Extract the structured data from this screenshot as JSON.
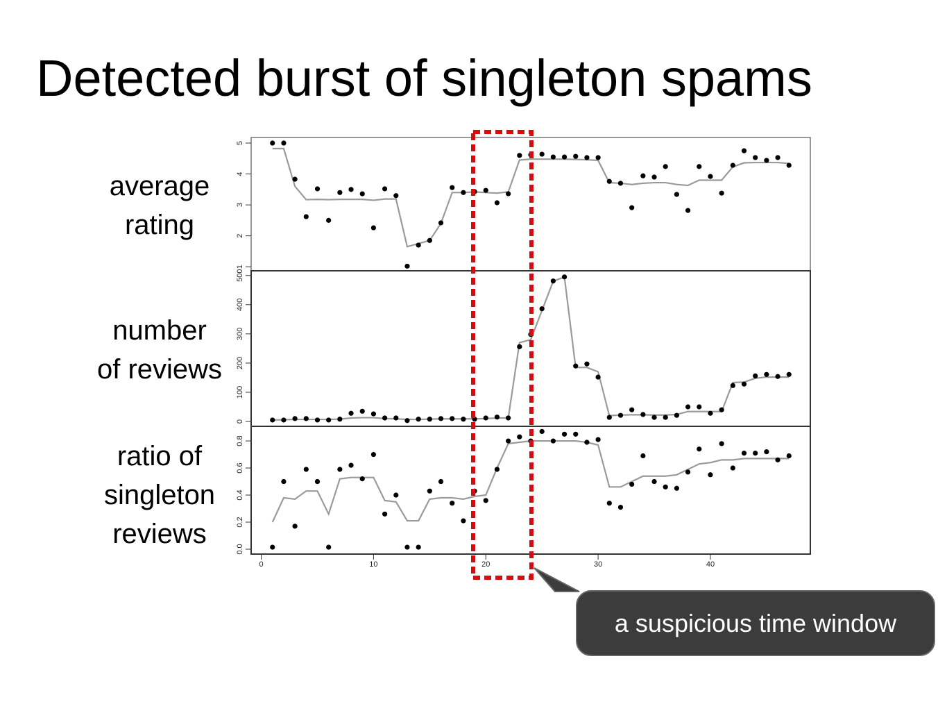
{
  "title": "Detected burst of singleton spams",
  "callout": "a suspicious time window",
  "chart_data": [
    {
      "type": "line",
      "ylabel": [
        "average",
        "rating"
      ],
      "x": [
        1,
        2,
        3,
        4,
        5,
        6,
        7,
        8,
        9,
        10,
        11,
        12,
        13,
        14,
        15,
        16,
        17,
        18,
        19,
        20,
        21,
        22,
        23,
        24,
        25,
        26,
        27,
        28,
        29,
        30,
        31,
        32,
        33,
        34,
        35,
        36,
        37,
        38,
        39,
        40,
        41,
        42,
        43,
        44,
        45,
        46,
        47
      ],
      "xlim": [
        -0.9,
        48.9
      ],
      "ylim": [
        0.87,
        5.18
      ],
      "yticks": [
        1,
        2,
        3,
        4,
        5
      ],
      "series": [
        {
          "mark": "line",
          "color": "#9a9a9a",
          "values": [
            4.82,
            4.82,
            3.6,
            3.17,
            3.18,
            3.17,
            3.18,
            3.18,
            3.18,
            3.15,
            3.19,
            3.19,
            1.65,
            1.75,
            1.85,
            2.4,
            3.4,
            3.4,
            3.42,
            3.4,
            3.38,
            3.42,
            4.45,
            4.48,
            4.48,
            4.48,
            4.48,
            4.47,
            4.46,
            4.44,
            3.72,
            3.7,
            3.66,
            3.7,
            3.72,
            3.72,
            3.66,
            3.63,
            3.8,
            3.8,
            3.8,
            4.23,
            4.36,
            4.37,
            4.37,
            4.37,
            4.34
          ]
        },
        {
          "mark": "point",
          "color": "#000000",
          "values": [
            5.0,
            5.0,
            3.83,
            2.62,
            3.52,
            2.5,
            3.4,
            3.5,
            3.36,
            2.26,
            3.52,
            3.3,
            1.02,
            1.7,
            1.85,
            2.42,
            3.56,
            3.4,
            3.43,
            3.47,
            3.07,
            3.36,
            4.6,
            4.62,
            4.64,
            4.55,
            4.55,
            4.57,
            4.53,
            4.53,
            3.76,
            3.7,
            2.91,
            3.94,
            3.9,
            4.24,
            3.34,
            2.82,
            4.24,
            3.92,
            3.38,
            4.28,
            4.75,
            4.53,
            4.44,
            4.53,
            4.28
          ]
        }
      ]
    },
    {
      "type": "line",
      "ylabel": [
        "number",
        "of reviews"
      ],
      "x": [
        1,
        2,
        3,
        4,
        5,
        6,
        7,
        8,
        9,
        10,
        11,
        12,
        13,
        14,
        15,
        16,
        17,
        18,
        19,
        20,
        21,
        22,
        23,
        24,
        25,
        26,
        27,
        28,
        29,
        30,
        31,
        32,
        33,
        34,
        35,
        36,
        37,
        38,
        39,
        40,
        41,
        42,
        43,
        44,
        45,
        46,
        47
      ],
      "xlim": [
        -0.9,
        48.9
      ],
      "ylim": [
        -16.6,
        516
      ],
      "yticks": [
        0,
        100,
        200,
        300,
        400,
        500
      ],
      "series": [
        {
          "mark": "line",
          "color": "#9a9a9a",
          "values": [
            5,
            6,
            7,
            7,
            7,
            7,
            8,
            12,
            13,
            13,
            10,
            9,
            7,
            7,
            8,
            9,
            9,
            9,
            9,
            10,
            12,
            12,
            270,
            280,
            380,
            480,
            495,
            185,
            185,
            170,
            20,
            22,
            23,
            23,
            22,
            22,
            24,
            34,
            34,
            34,
            34,
            133,
            135,
            148,
            152,
            152,
            152
          ]
        },
        {
          "mark": "point",
          "color": "#000000",
          "values": [
            5,
            5,
            10,
            10,
            5,
            5,
            8,
            28,
            35,
            26,
            12,
            12,
            3,
            8,
            8,
            10,
            10,
            8,
            8,
            12,
            15,
            12,
            256,
            298,
            386,
            481,
            495,
            190,
            197,
            152,
            14,
            21,
            40,
            24,
            14,
            14,
            21,
            50,
            50,
            28,
            40,
            123,
            128,
            156,
            161,
            154,
            161
          ]
        }
      ]
    },
    {
      "type": "line",
      "ylabel": [
        "ratio of",
        "singleton",
        "reviews"
      ],
      "x": [
        1,
        2,
        3,
        4,
        5,
        6,
        7,
        8,
        9,
        10,
        11,
        12,
        13,
        14,
        15,
        16,
        17,
        18,
        19,
        20,
        21,
        22,
        23,
        24,
        25,
        26,
        27,
        28,
        29,
        30,
        31,
        32,
        33,
        34,
        35,
        36,
        37,
        38,
        39,
        40,
        41,
        42,
        43,
        44,
        45,
        46,
        47
      ],
      "xlim": [
        -0.9,
        48.9
      ],
      "xticks": [
        0,
        10,
        20,
        30,
        40
      ],
      "ylim": [
        -0.036,
        0.908
      ],
      "yticks": [
        {
          "value": 0,
          "label": "0.0"
        },
        0.2,
        0.4,
        0.6,
        0.8
      ],
      "series": [
        {
          "mark": "line",
          "color": "#9a9a9a",
          "values": [
            0.2,
            0.38,
            0.37,
            0.43,
            0.43,
            0.26,
            0.52,
            0.53,
            0.53,
            0.53,
            0.36,
            0.35,
            0.21,
            0.21,
            0.37,
            0.38,
            0.38,
            0.37,
            0.39,
            0.4,
            0.6,
            0.78,
            0.79,
            0.8,
            0.8,
            0.8,
            0.8,
            0.8,
            0.79,
            0.77,
            0.46,
            0.46,
            0.5,
            0.54,
            0.54,
            0.54,
            0.55,
            0.59,
            0.63,
            0.64,
            0.66,
            0.66,
            0.67,
            0.67,
            0.67,
            0.67,
            0.67
          ]
        },
        {
          "mark": "point",
          "color": "#000000",
          "values": [
            0.015,
            0.5,
            0.17,
            0.59,
            0.5,
            0.015,
            0.59,
            0.62,
            0.52,
            0.7,
            0.26,
            0.4,
            0.015,
            0.015,
            0.43,
            0.5,
            0.34,
            0.21,
            0.43,
            0.36,
            0.59,
            0.8,
            0.83,
            0.8,
            0.87,
            0.8,
            0.85,
            0.85,
            0.79,
            0.81,
            0.34,
            0.31,
            0.48,
            0.69,
            0.5,
            0.46,
            0.45,
            0.57,
            0.74,
            0.55,
            0.78,
            0.6,
            0.71,
            0.71,
            0.72,
            0.66,
            0.69
          ]
        }
      ]
    }
  ]
}
